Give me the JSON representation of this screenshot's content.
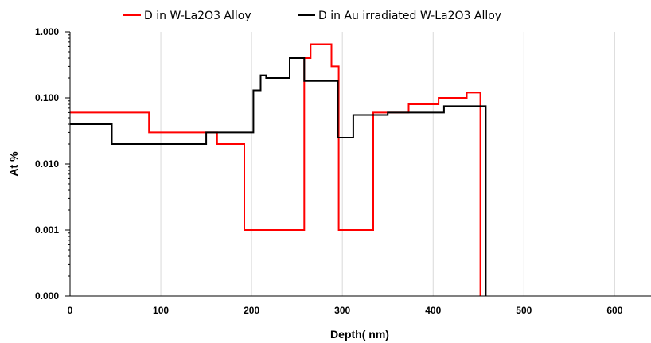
{
  "chart_data": {
    "type": "line",
    "step": true,
    "xlabel": "Depth( nm)",
    "ylabel": "At %",
    "xlim": [
      0,
      640
    ],
    "xticks": [
      0,
      100,
      200,
      300,
      400,
      500,
      600
    ],
    "xtick_labels": [
      "0",
      "100",
      "200",
      "300",
      "400",
      "500",
      "600"
    ],
    "ylim": [
      0.0001,
      1
    ],
    "yscale": "log",
    "yticks": [
      0.0001,
      0.001,
      0.01,
      0.1,
      1
    ],
    "ytick_labels": [
      "0.000",
      "0.001",
      "0.010",
      "0.100",
      "1.000"
    ],
    "grid": {
      "x": true,
      "y": false
    },
    "legend_position": "top",
    "series": [
      {
        "name": "D in W-La2O3 Alloy",
        "color": "#ff0000",
        "x": [
          0,
          87,
          87,
          162,
          162,
          192,
          192,
          258,
          258,
          265,
          265,
          277,
          277,
          288,
          288,
          296,
          296,
          334,
          334,
          373,
          373,
          406,
          406,
          437,
          437,
          452,
          452
        ],
        "y": [
          0.06,
          0.06,
          0.03,
          0.03,
          0.02,
          0.02,
          0.001,
          0.001,
          0.4,
          0.4,
          0.65,
          0.65,
          0.65,
          0.65,
          0.3,
          0.3,
          0.001,
          0.001,
          0.06,
          0.06,
          0.08,
          0.08,
          0.1,
          0.1,
          0.12,
          0.12,
          0.0001
        ]
      },
      {
        "name": "D in Au irradiated W-La2O3 Alloy",
        "color": "#000000",
        "x": [
          0,
          46,
          46,
          150,
          150,
          202,
          202,
          210,
          210,
          216,
          216,
          222,
          222,
          242,
          242,
          258,
          258,
          295,
          295,
          312,
          312,
          350,
          350,
          412,
          412,
          458,
          458
        ],
        "y": [
          0.04,
          0.04,
          0.02,
          0.02,
          0.03,
          0.03,
          0.13,
          0.13,
          0.22,
          0.22,
          0.2,
          0.2,
          0.2,
          0.2,
          0.4,
          0.4,
          0.18,
          0.18,
          0.025,
          0.025,
          0.055,
          0.055,
          0.06,
          0.06,
          0.075,
          0.075,
          0.0001
        ]
      }
    ]
  }
}
